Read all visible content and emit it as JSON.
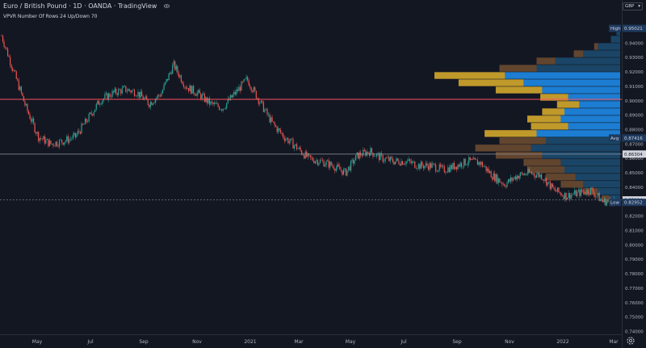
{
  "header": {
    "title": "Euro / British Pound · 1D · OANDA · TradingView",
    "indicator": "VPVR Number Of Rows 24 Up/Down 70"
  },
  "currency": "GBP",
  "colors": {
    "background": "#131722",
    "candle_up": "#26a69a",
    "candle_down": "#ef5350",
    "vp_up": "#d4a72c",
    "vp_down": "#1e88e5",
    "vp_up_dim": "#6b4a30",
    "vp_down_dim": "#1c4a6e",
    "red_line": "#f7525f",
    "accent_label": "#2962ff"
  },
  "chart_data": {
    "type": "candlestick",
    "symbol": "EURGBP",
    "interval": "1D",
    "ylim": [
      0.74,
      0.95
    ],
    "y_ticks": [
      "0.95000",
      "0.94000",
      "0.93000",
      "0.92000",
      "0.91000",
      "0.90000",
      "0.89000",
      "0.88000",
      "0.87000",
      "0.86000",
      "0.85000",
      "0.84000",
      "0.83000",
      "0.82000",
      "0.81000",
      "0.80000",
      "0.79000",
      "0.78000",
      "0.77000",
      "0.76000",
      "0.75000",
      "0.74000"
    ],
    "x_ticks": [
      "May",
      "Jul",
      "Sep",
      "Nov",
      "2021",
      "Mar",
      "May",
      "Jul",
      "Sep",
      "Nov",
      "2022",
      "Mar"
    ],
    "price_path": [
      [
        "Apr",
        0.945
      ],
      [
        "Apr",
        0.92
      ],
      [
        "Apr",
        0.895
      ],
      [
        "Apr",
        0.875
      ],
      [
        "May",
        0.87
      ],
      [
        "May",
        0.872
      ],
      [
        "May",
        0.875
      ],
      [
        "Jun",
        0.887
      ],
      [
        "Jun",
        0.9
      ],
      [
        "Jul",
        0.905
      ],
      [
        "Jul",
        0.908
      ],
      [
        "Aug",
        0.906
      ],
      [
        "Aug",
        0.898
      ],
      [
        "Sep",
        0.905
      ],
      [
        "Sep",
        0.925
      ],
      [
        "Oct",
        0.91
      ],
      [
        "Oct",
        0.905
      ],
      [
        "Nov",
        0.898
      ],
      [
        "Nov",
        0.895
      ],
      [
        "Dec",
        0.905
      ],
      [
        "Dec",
        0.915
      ],
      [
        "2021",
        0.9
      ],
      [
        "Jan",
        0.885
      ],
      [
        "Feb",
        0.875
      ],
      [
        "Feb",
        0.868
      ],
      [
        "Mar",
        0.86
      ],
      [
        "Mar",
        0.858
      ],
      [
        "Apr",
        0.855
      ],
      [
        "Apr",
        0.85
      ],
      [
        "May",
        0.862
      ],
      [
        "May",
        0.865
      ],
      [
        "Jun",
        0.86
      ],
      [
        "Jun",
        0.858
      ],
      [
        "Jul",
        0.858
      ],
      [
        "Jul",
        0.855
      ],
      [
        "Aug",
        0.855
      ],
      [
        "Aug",
        0.852
      ],
      [
        "Sep",
        0.855
      ],
      [
        "Sep",
        0.858
      ],
      [
        "Oct",
        0.857
      ],
      [
        "Oct",
        0.848
      ],
      [
        "Nov",
        0.842
      ],
      [
        "Nov",
        0.848
      ],
      [
        "Dec",
        0.85
      ],
      [
        "Dec",
        0.848
      ],
      [
        "2022",
        0.838
      ],
      [
        "Jan",
        0.834
      ],
      [
        "Feb",
        0.836
      ],
      [
        "Feb",
        0.838
      ],
      [
        "Mar",
        0.83
      ],
      [
        "Mar",
        0.8309
      ]
    ],
    "volume_profile": {
      "rows": 24,
      "price_range": [
        0.8295,
        0.9502
      ],
      "rows_top_to_bottom": [
        {
          "up": 0.0,
          "down": 0.02
        },
        {
          "up": 0.0,
          "down": 0.05
        },
        {
          "up": 0.02,
          "down": 0.12
        },
        {
          "up": 0.05,
          "down": 0.2
        },
        {
          "up": 0.1,
          "down": 0.35
        },
        {
          "up": 0.2,
          "down": 0.45
        },
        {
          "up": 0.38,
          "down": 0.62
        },
        {
          "up": 0.35,
          "down": 0.52
        },
        {
          "up": 0.25,
          "down": 0.42
        },
        {
          "up": 0.15,
          "down": 0.28
        },
        {
          "up": 0.12,
          "down": 0.22
        },
        {
          "up": 0.12,
          "down": 0.3
        },
        {
          "up": 0.18,
          "down": 0.32
        },
        {
          "up": 0.2,
          "down": 0.28
        },
        {
          "up": 0.28,
          "down": 0.45
        },
        {
          "up": 0.25,
          "down": 0.4
        },
        {
          "up": 0.3,
          "down": 0.48
        },
        {
          "up": 0.25,
          "down": 0.42
        },
        {
          "up": 0.2,
          "down": 0.32
        },
        {
          "up": 0.2,
          "down": 0.3
        },
        {
          "up": 0.16,
          "down": 0.24
        },
        {
          "up": 0.12,
          "down": 0.2
        },
        {
          "up": 0.08,
          "down": 0.12
        },
        {
          "up": 0.04,
          "down": 0.06
        }
      ]
    },
    "horizontal_lines": [
      {
        "name": "red-line",
        "value": 0.901,
        "style": "solid"
      },
      {
        "name": "grey-line",
        "value": 0.863,
        "style": "solid"
      },
      {
        "name": "last-price-line",
        "value": 0.8312,
        "style": "dashed"
      }
    ],
    "price_labels": {
      "high": {
        "tag": "High",
        "value": "0.95021"
      },
      "avg": {
        "tag": "Avg",
        "value": "0.87416"
      },
      "grey": {
        "value": "0.86304"
      },
      "last": {
        "value": "0.83124"
      },
      "low": {
        "tag": "Low",
        "value": "0.82952"
      }
    }
  }
}
